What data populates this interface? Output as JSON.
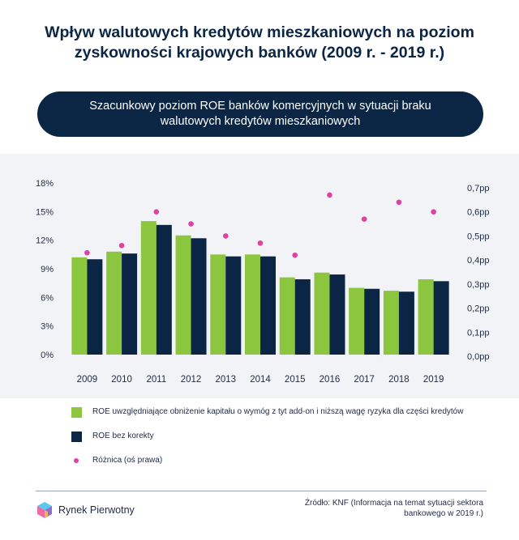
{
  "header": {
    "title_line1": "Wpływ walutowych kredytów mieszkaniowych na poziom",
    "title_line2": "zyskowności krajowych banków (2009 r. - 2019 r.)",
    "subtitle_line1": "Szacunkowy poziom ROE banków komercyjnych w sytuacji braku",
    "subtitle_line2": "walutowych kredytów mieszkaniowych"
  },
  "chart_data": {
    "type": "bar",
    "categories": [
      "2009",
      "2010",
      "2011",
      "2012",
      "2013",
      "2014",
      "2015",
      "2016",
      "2017",
      "2018",
      "2019"
    ],
    "series": [
      {
        "name": "ROE uwzględniające obniżenie kapitału o wymóg z tyt add-on i niższą wagę ryzyka dla części kredytów",
        "kind": "bar",
        "axis": "left",
        "color": "#8cc63f",
        "values": [
          10.2,
          10.8,
          14.0,
          12.5,
          10.5,
          10.5,
          8.1,
          8.6,
          7.0,
          6.7,
          7.9
        ]
      },
      {
        "name": "ROE bez korekty",
        "kind": "bar",
        "axis": "left",
        "color": "#0b2545",
        "values": [
          10.0,
          10.6,
          13.6,
          12.2,
          10.3,
          10.3,
          7.9,
          8.4,
          6.9,
          6.6,
          7.7
        ]
      },
      {
        "name": "Różnica (oś prawa)",
        "kind": "scatter",
        "axis": "right",
        "color": "#e040a0",
        "values": [
          0.43,
          0.46,
          0.6,
          0.55,
          0.5,
          0.47,
          0.42,
          0.67,
          0.57,
          0.64,
          0.6
        ]
      }
    ],
    "y_left": {
      "min": 0,
      "max": 18,
      "ticks": [
        "0%",
        "3%",
        "6%",
        "9%",
        "12%",
        "15%",
        "18%"
      ],
      "tick_values": [
        0,
        3,
        6,
        9,
        12,
        15,
        18
      ]
    },
    "y_right": {
      "min": 0,
      "max": 0.7,
      "ticks": [
        "0,0pp",
        "0,1pp",
        "0,2pp",
        "0,3pp",
        "0,4pp",
        "0,5pp",
        "0,6pp",
        "0,7pp"
      ],
      "tick_values": [
        0,
        0.1,
        0.2,
        0.3,
        0.4,
        0.5,
        0.6,
        0.7
      ]
    },
    "grid": false,
    "legend_position": "bottom-left"
  },
  "footer": {
    "logo_text": "Rynek Pierwotny",
    "source_line1": "Źródło: KNF (Informacja na temat sytuacji sektora",
    "source_line2": "bankowego w 2019 r.)"
  },
  "colors": {
    "navy": "#0b2545",
    "green": "#8cc63f",
    "pink": "#e040a0",
    "chart_background": "#f2f3f6"
  }
}
